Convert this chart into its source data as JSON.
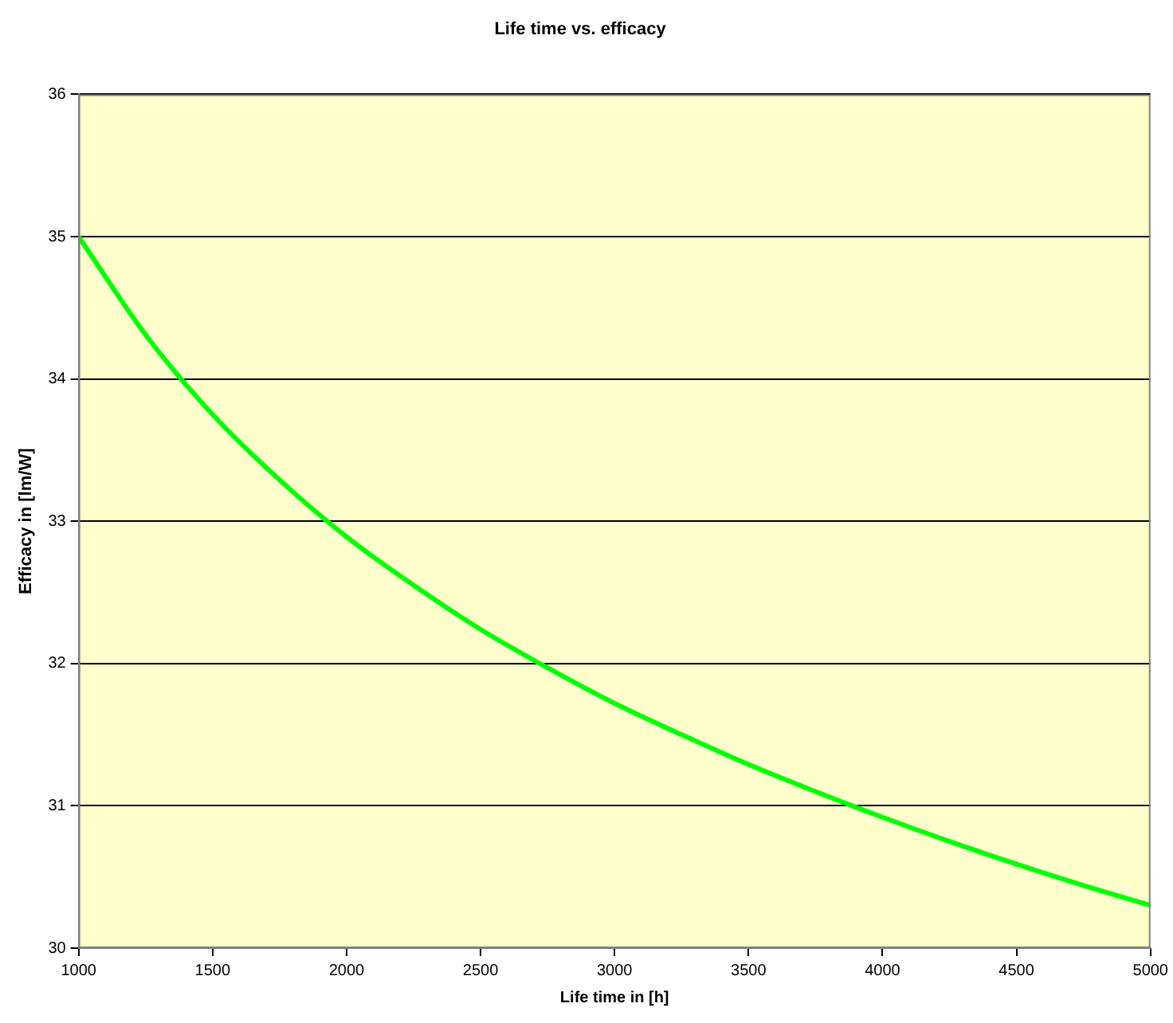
{
  "chart_data": {
    "type": "line",
    "title": "Life time vs. efficacy",
    "xlabel": "Life time in [h]",
    "ylabel": "Efficacy in [lm/W]",
    "x": [
      1000,
      1250,
      1500,
      1750,
      2000,
      2250,
      2500,
      2750,
      3000,
      3250,
      3500,
      3750,
      4000,
      4250,
      4500,
      4750,
      5000
    ],
    "series": [
      {
        "color": "#00ff00",
        "values": [
          35,
          34.31,
          33.75,
          33.29,
          32.89,
          32.55,
          32.24,
          31.97,
          31.72,
          31.5,
          31.29,
          31.1,
          30.92,
          30.75,
          30.59,
          30.44,
          30.3
        ]
      }
    ],
    "xlim": [
      1000,
      5000
    ],
    "xticks": [
      1000,
      1500,
      2000,
      2500,
      3000,
      3500,
      4000,
      4500,
      5000
    ],
    "ylim": [
      30,
      36
    ],
    "yticks": [
      30,
      31,
      32,
      33,
      34,
      35,
      36
    ],
    "grid": "y",
    "legend": false,
    "marker": "none",
    "line_style": "solid"
  }
}
